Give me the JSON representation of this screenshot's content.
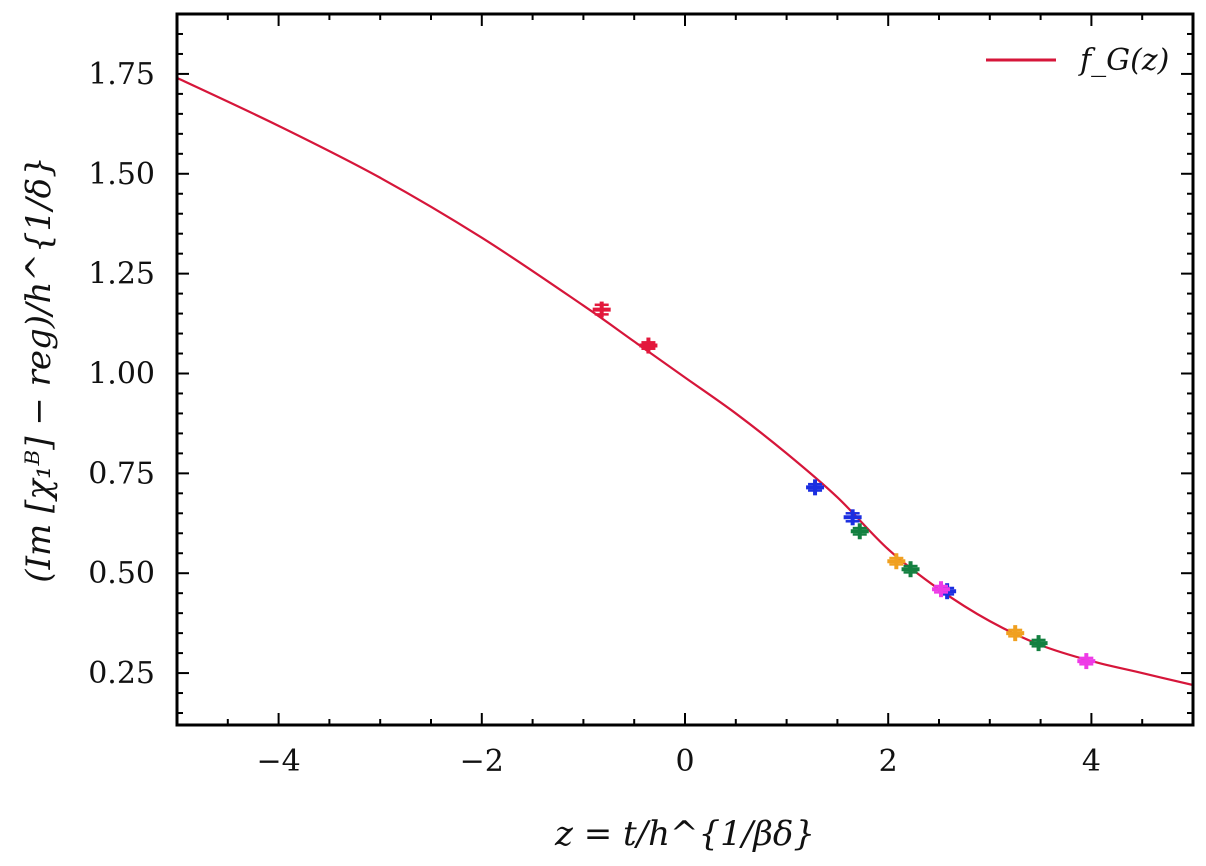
{
  "chart_data": {
    "type": "scatter",
    "xlabel": "z = t/h^{1/βδ}",
    "ylabel": "(Im [χ₁ᴮ] − reg)/h^{1/δ}",
    "xlim": [
      -5,
      5
    ],
    "ylim": [
      0.12,
      1.9
    ],
    "xticks": [
      -4,
      -2,
      0,
      2,
      4
    ],
    "xtick_labels": [
      "−4",
      "−2",
      "0",
      "2",
      "4"
    ],
    "yticks": [
      0.25,
      0.5,
      0.75,
      1.0,
      1.25,
      1.5,
      1.75
    ],
    "ytick_labels": [
      "0.25",
      "0.50",
      "0.75",
      "1.00",
      "1.25",
      "1.50",
      "1.75"
    ],
    "grid": false,
    "legend": {
      "position": "top-right",
      "entries": [
        {
          "label": "f_G(z)",
          "color": "#d6163a"
        }
      ]
    },
    "curve": {
      "name": "f_G(z)",
      "color": "#d6163a",
      "x": [
        -5,
        -4,
        -3,
        -2,
        -1,
        -0.5,
        0,
        0.5,
        1,
        1.5,
        2,
        2.5,
        3,
        3.5,
        4,
        4.5,
        5
      ],
      "y": [
        1.74,
        1.62,
        1.49,
        1.34,
        1.17,
        1.08,
        0.99,
        0.9,
        0.8,
        0.69,
        0.56,
        0.46,
        0.38,
        0.32,
        0.28,
        0.25,
        0.22
      ]
    },
    "series": [
      {
        "color": "#e3183c",
        "points": [
          [
            -0.82,
            1.16
          ],
          [
            -0.36,
            1.07
          ]
        ],
        "yerr": [
          0.012,
          0.008
        ]
      },
      {
        "color": "#1b2ee0",
        "points": [
          [
            1.28,
            0.715
          ],
          [
            1.65,
            0.64
          ],
          [
            2.58,
            0.455
          ]
        ],
        "yerr": [
          0.008,
          0.01,
          0.008
        ]
      },
      {
        "color": "#138040",
        "points": [
          [
            1.72,
            0.605
          ],
          [
            2.22,
            0.51
          ],
          [
            3.48,
            0.325
          ]
        ],
        "yerr": [
          0.008,
          0.008,
          0.008
        ]
      },
      {
        "color": "#f0a020",
        "points": [
          [
            2.08,
            0.53
          ],
          [
            3.25,
            0.35
          ]
        ],
        "yerr": [
          0.008,
          0.008
        ]
      },
      {
        "color": "#ee3ae6",
        "points": [
          [
            2.52,
            0.46
          ],
          [
            3.95,
            0.28
          ]
        ],
        "yerr": [
          0.008,
          0.008
        ]
      }
    ]
  }
}
